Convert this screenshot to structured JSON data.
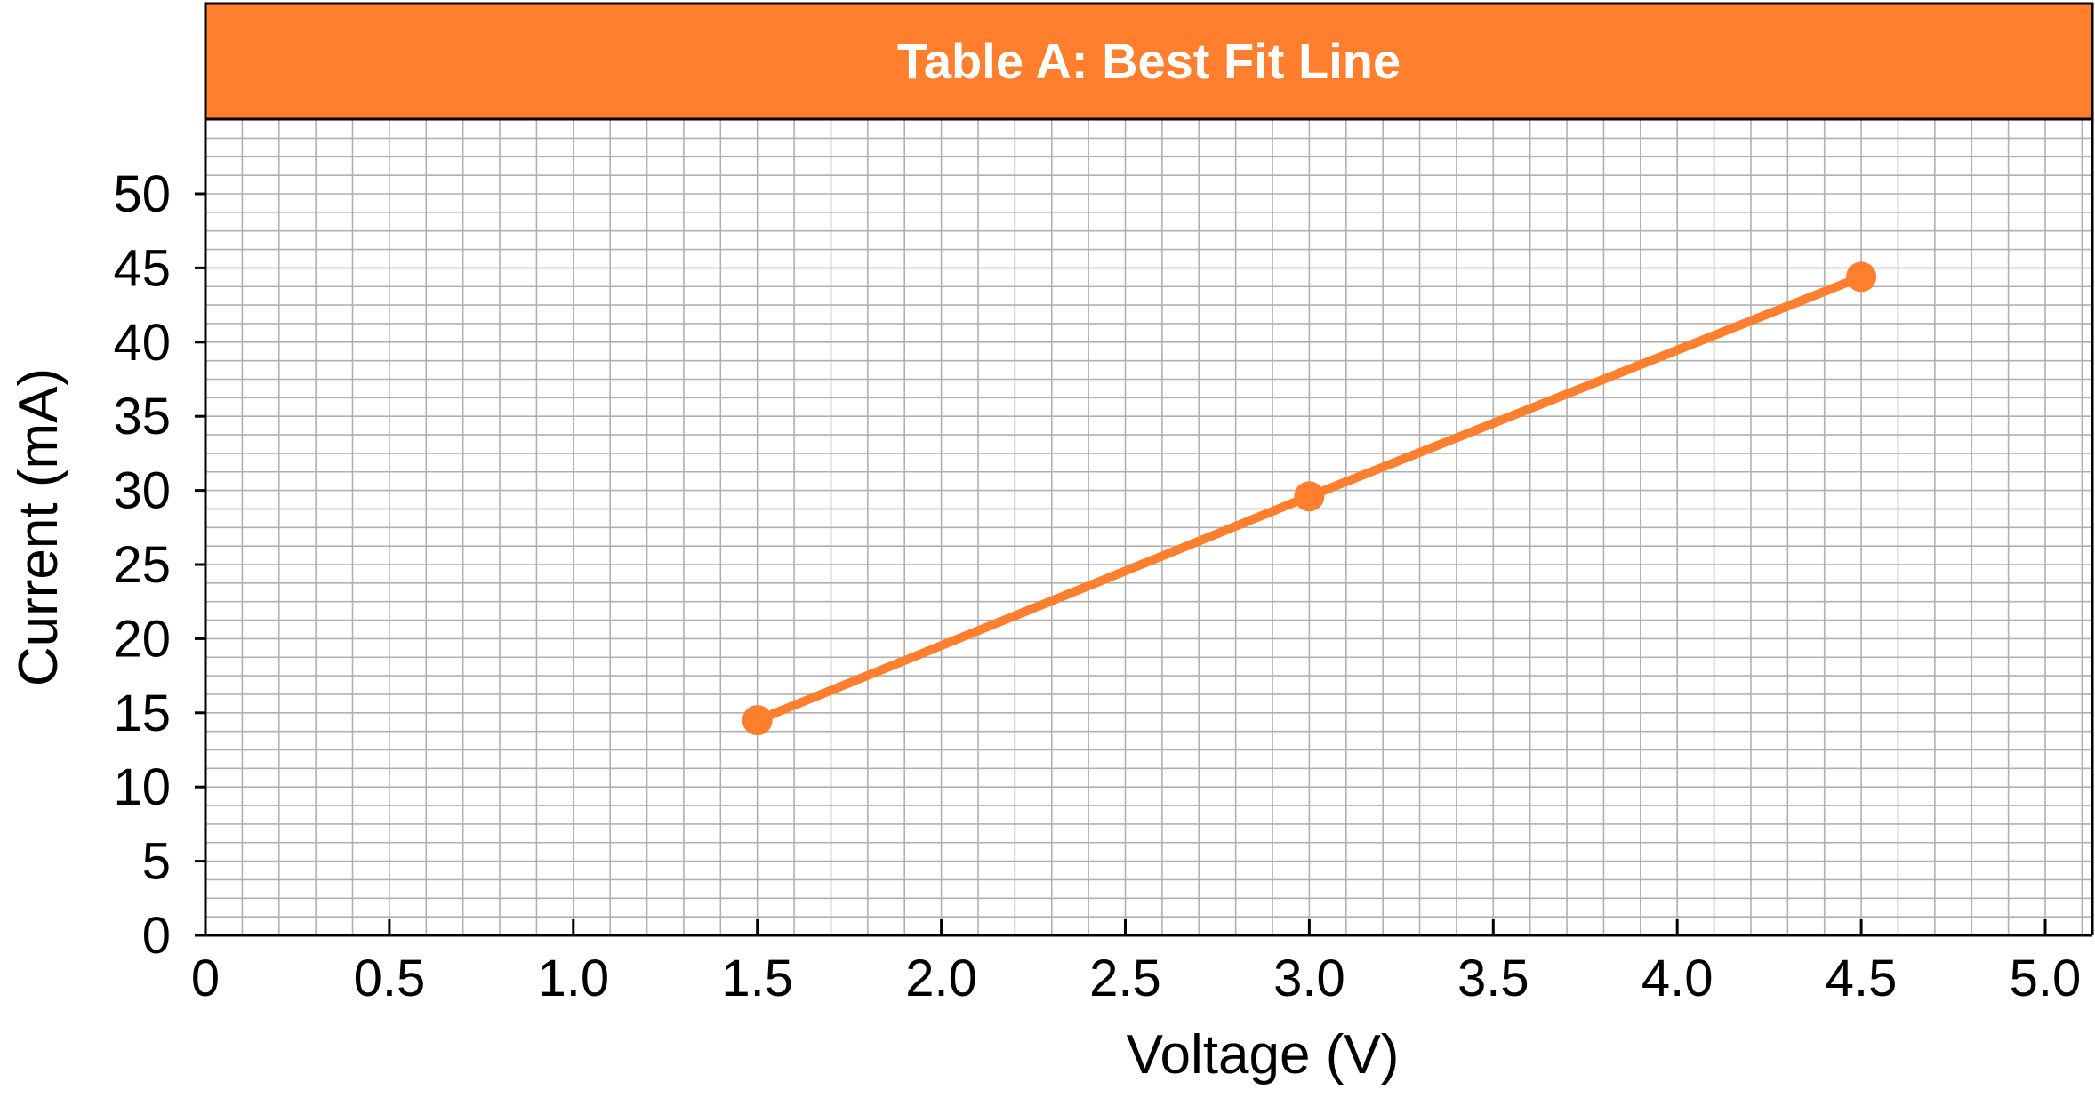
{
  "chart_data": {
    "type": "line",
    "title": "Table A: Best Fit Line",
    "xlabel": "Voltage (V)",
    "ylabel": "Current (mA)",
    "xlim": [
      0,
      5.1
    ],
    "ylim": [
      0,
      55
    ],
    "x_ticks": [
      0,
      0.5,
      1.0,
      1.5,
      2.0,
      2.5,
      3.0,
      3.5,
      4.0,
      4.5,
      5.0
    ],
    "x_tick_labels": [
      "0",
      "0.5",
      "1.0",
      "1.5",
      "2.0",
      "2.5",
      "3.0",
      "3.5",
      "4.0",
      "4.5",
      "5.0"
    ],
    "y_ticks": [
      0,
      5,
      10,
      15,
      20,
      25,
      30,
      35,
      40,
      45,
      50
    ],
    "y_tick_labels": [
      "0",
      "5",
      "10",
      "15",
      "20",
      "25",
      "30",
      "35",
      "40",
      "45",
      "50"
    ],
    "grid": true,
    "series": [
      {
        "x": [
          1.5,
          3.0,
          4.5
        ],
        "y": [
          14.5,
          29.6,
          44.4
        ]
      }
    ]
  },
  "colors": {
    "accent": "#FF7F2F",
    "grid": "#b0b0b0",
    "axis": "#000000"
  }
}
